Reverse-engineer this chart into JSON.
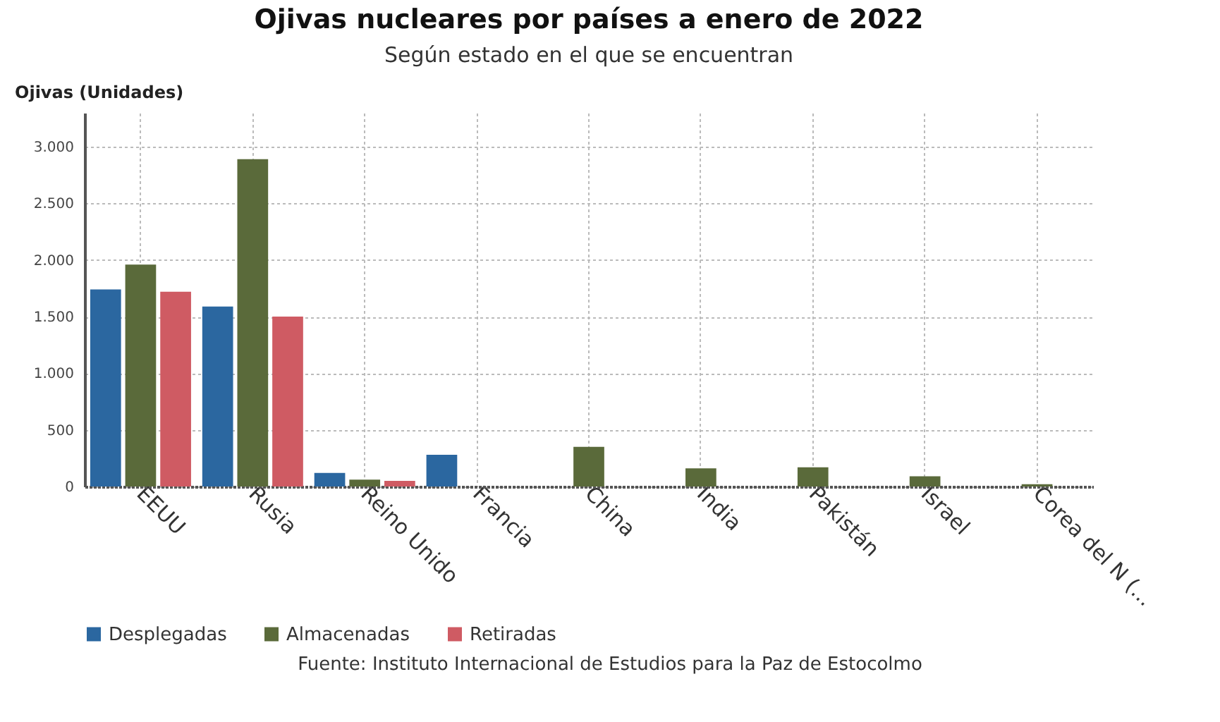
{
  "chart_data": {
    "type": "bar",
    "title": "Ojivas nucleares por países a enero de 2022",
    "subtitle": "Según estado en el que se encuentran",
    "ylabel": "Ojivas (Unidades)",
    "categories": [
      "EEUU",
      "Rusia",
      "Reino Unido",
      "Francia",
      "China",
      "India",
      "Pakistán",
      "Israel",
      "Corea del N (..."
    ],
    "series": [
      {
        "name": "Desplegadas",
        "color": "#2b67a0",
        "values": [
          1740,
          1590,
          120,
          280,
          null,
          null,
          null,
          null,
          null
        ]
      },
      {
        "name": "Almacenadas",
        "color": "#5a6a3a",
        "values": [
          1960,
          2890,
          60,
          null,
          350,
          160,
          170,
          90,
          20
        ]
      },
      {
        "name": "Retiradas",
        "color": "#cf5b63",
        "values": [
          1720,
          1500,
          50,
          null,
          null,
          null,
          null,
          null,
          null
        ]
      }
    ],
    "ylim": [
      0,
      3300
    ],
    "yticks": [
      0,
      500,
      {
        "value": 1000,
        "label": "1.000"
      },
      {
        "value": 1500,
        "label": "1.500"
      },
      {
        "value": 2000,
        "label": "2.000"
      },
      {
        "value": 2500,
        "label": "2.500"
      },
      {
        "value": 3000,
        "label": "3.000"
      }
    ],
    "grid": true,
    "legend": "bottom",
    "annotations": [
      "Fuente: Instituto Internacional de Estudios para la Paz de Estocolmo"
    ]
  }
}
